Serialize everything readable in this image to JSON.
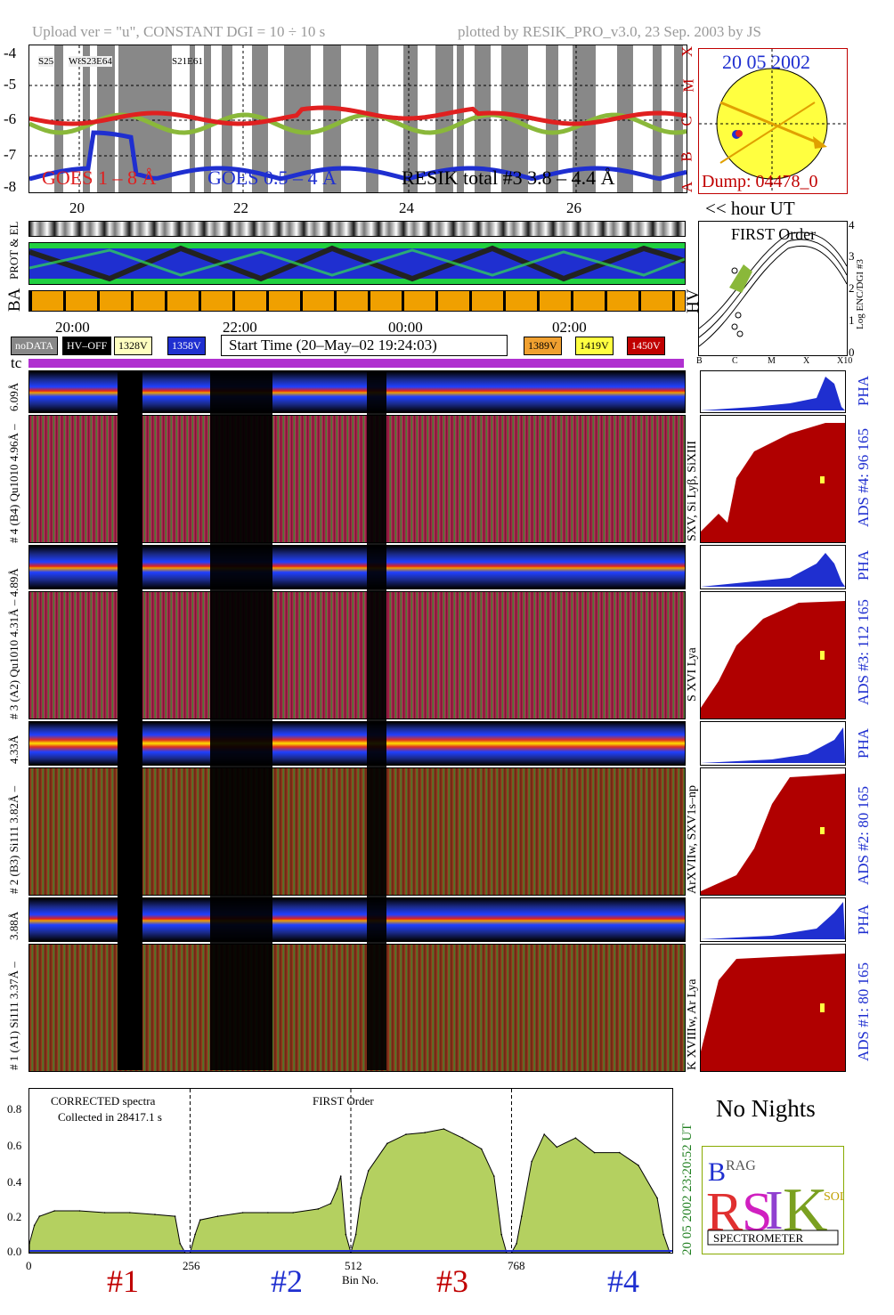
{
  "header": {
    "left": "Upload ver = \"u\", CONSTANT  DGI =  10 ÷  10 s",
    "right": "plotted by RESIK_PRO_v3.0, 23 Sep. 2003 by JS"
  },
  "goes_panel": {
    "y_ticks": [
      "-4",
      "-5",
      "-6",
      "-7",
      "-8"
    ],
    "class_letters": [
      "X",
      "M",
      "C",
      "B",
      "A"
    ],
    "ar_labels": [
      "S25",
      "W8",
      "S23E64",
      "S21E61"
    ],
    "legend": [
      "GOES 1 – 8 Å",
      "GOES 0.5 – 4 Å",
      "RESIK total #3  3.8 – 4.4 Å"
    ],
    "x_ticks": [
      "20",
      "22",
      "24",
      "26"
    ],
    "x_unit": "<< hour UT",
    "colors": {
      "goes_long": "#e02020",
      "goes_short": "#1f2fd0",
      "resik": "#8ab83a",
      "night": "#888888"
    }
  },
  "sun": {
    "date": "20 05 2002",
    "dump": "Dump: 04478_0",
    "colors": {
      "disk": "#ffff40",
      "arrow": "#e0a000",
      "border": "#c00000"
    }
  },
  "status_rows": {
    "labels": [
      "PROT & EL",
      "BA",
      "HV"
    ],
    "x_ticks": [
      "20:00",
      "22:00",
      "00:00",
      "02:00"
    ],
    "start_time": "Start Time (20–May–02 19:24:03)",
    "hv_boxes": [
      {
        "label": "noDATA",
        "color": "#888888",
        "text_color": "#ffffff"
      },
      {
        "label": "HV–OFF",
        "color": "#000000",
        "text_color": "#ffffff"
      },
      {
        "label": "1328V",
        "color": "#ffffc0",
        "text_color": "#000000"
      },
      {
        "label": "1358V",
        "color": "#1f2fd0",
        "text_color": "#ffffff"
      },
      {
        "label": "1389V",
        "color": "#f0a030",
        "text_color": "#000000"
      },
      {
        "label": "1419V",
        "color": "#ffff40",
        "text_color": "#000000"
      },
      {
        "label": "1450V",
        "color": "#c00000",
        "text_color": "#ffffff"
      }
    ],
    "tc_label": "tc"
  },
  "first_order": {
    "title": "FIRST Order",
    "y_label": "Log ENC/DGI #3",
    "y_ticks": [
      "4",
      "3",
      "2",
      "1",
      "0"
    ],
    "x_ticks": [
      "B",
      "C",
      "M",
      "X",
      "X10"
    ]
  },
  "detectors": [
    {
      "strip_label": "6.09Å",
      "main_label": "# 4 (B4) Qu1010 4.96Å –",
      "line_label": "SXV, Si Lyβ, SiXIII",
      "pha": "PHA",
      "ads": "ADS #4:   96 165"
    },
    {
      "strip_label": "# 3 (A2) Qu1010  4.31Å – 4.89Å",
      "main_label": "",
      "line_label": "S XVI Lya",
      "pha": "PHA",
      "ads": "ADS #3:   112 165"
    },
    {
      "strip_label": "4.33Å",
      "main_label": "# 2 (B3) Si111  3.82Å –",
      "line_label": "ArXVIIw, SXV1s–np",
      "pha": "PHA",
      "ads": "ADS #2:   80 165"
    },
    {
      "strip_label": "3.88Å",
      "main_label": "# 1 (A1) Si111  3.37Å –",
      "line_label": "K XVIIIw, Ar Lya",
      "pha": "PHA",
      "ads": "ADS #1:   80 165"
    }
  ],
  "chart_data": {
    "type": "area",
    "title": "FIRST Order",
    "annotations": [
      "CORRECTED spectra",
      "Collected in 28417.1 s"
    ],
    "xlabel": "Bin No.",
    "ylabel": "",
    "xlim": [
      0,
      1024
    ],
    "ylim": [
      0.0,
      0.9
    ],
    "x_ticks": [
      "0",
      "256",
      "512",
      "768"
    ],
    "y_ticks": [
      "0.0",
      "0.2",
      "0.4",
      "0.6",
      "0.8"
    ],
    "channels": [
      "#1",
      "#2",
      "#3",
      "#4"
    ],
    "side_text": "20 05 2002     23:20:52 UT",
    "x": [
      0,
      8,
      16,
      40,
      80,
      120,
      160,
      200,
      232,
      240,
      248,
      256,
      264,
      272,
      300,
      340,
      380,
      420,
      460,
      480,
      490,
      496,
      504,
      512,
      520,
      528,
      540,
      570,
      600,
      630,
      660,
      690,
      720,
      740,
      752,
      760,
      768,
      776,
      784,
      800,
      820,
      840,
      870,
      900,
      940,
      970,
      1000,
      1010,
      1020
    ],
    "series": [
      {
        "values": [
          0.05,
          0.15,
          0.2,
          0.23,
          0.23,
          0.22,
          0.22,
          0.21,
          0.2,
          0.05,
          0.0,
          0.0,
          0.1,
          0.18,
          0.2,
          0.22,
          0.22,
          0.22,
          0.24,
          0.27,
          0.35,
          0.42,
          0.1,
          0.0,
          0.1,
          0.3,
          0.45,
          0.6,
          0.65,
          0.66,
          0.68,
          0.63,
          0.57,
          0.42,
          0.1,
          0.0,
          0.0,
          0.05,
          0.2,
          0.5,
          0.65,
          0.58,
          0.63,
          0.55,
          0.55,
          0.48,
          0.3,
          0.1,
          0.0
        ]
      }
    ],
    "series_colors": [
      "#b4d060",
      "#1f2fd0"
    ],
    "channel_colors": [
      "#c00000",
      "#1f2fd0",
      "#c00000",
      "#1f2fd0"
    ]
  },
  "side_panel": {
    "no_nights": "No Nights",
    "logo_text": "SPECTROMETER",
    "logo_letters": [
      "B",
      "R",
      "A",
      "G",
      "E",
      "S",
      "I",
      "K",
      "S",
      "O",
      "L",
      "A",
      "R"
    ]
  }
}
